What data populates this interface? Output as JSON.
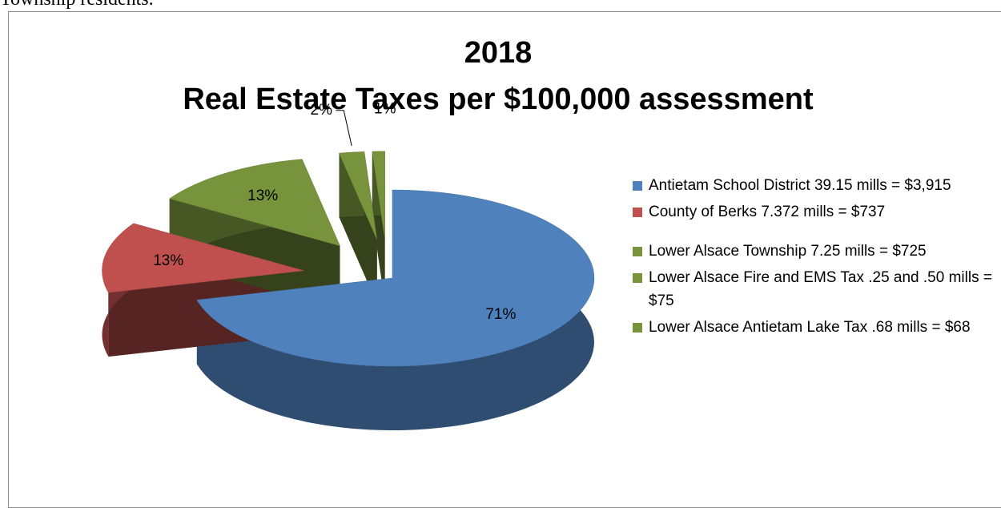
{
  "document": {
    "text": "Township residents."
  },
  "chart_data": {
    "type": "pie3d",
    "title": [
      "2018",
      "Real Estate Taxes per $100,000 assessment"
    ],
    "categories": [
      "Antietam School District 39.15 mills = $3,915",
      "County of Berks 7.372 mills = $737",
      "Lower Alsace Township 7.25 mills = $725",
      "Lower Alsace Fire and EMS Tax .25 and .50 mills = $75",
      "Lower Alsace Antietam Lake Tax .68 mills = $68"
    ],
    "values": [
      71,
      13,
      13,
      2,
      1
    ],
    "value_labels": [
      "71%",
      "13%",
      "13%",
      "2%",
      "1%"
    ],
    "colors": [
      "#4f81bd",
      "#c0504d",
      "#77933c",
      "#77933c",
      "#77933c"
    ],
    "legend": "right"
  }
}
